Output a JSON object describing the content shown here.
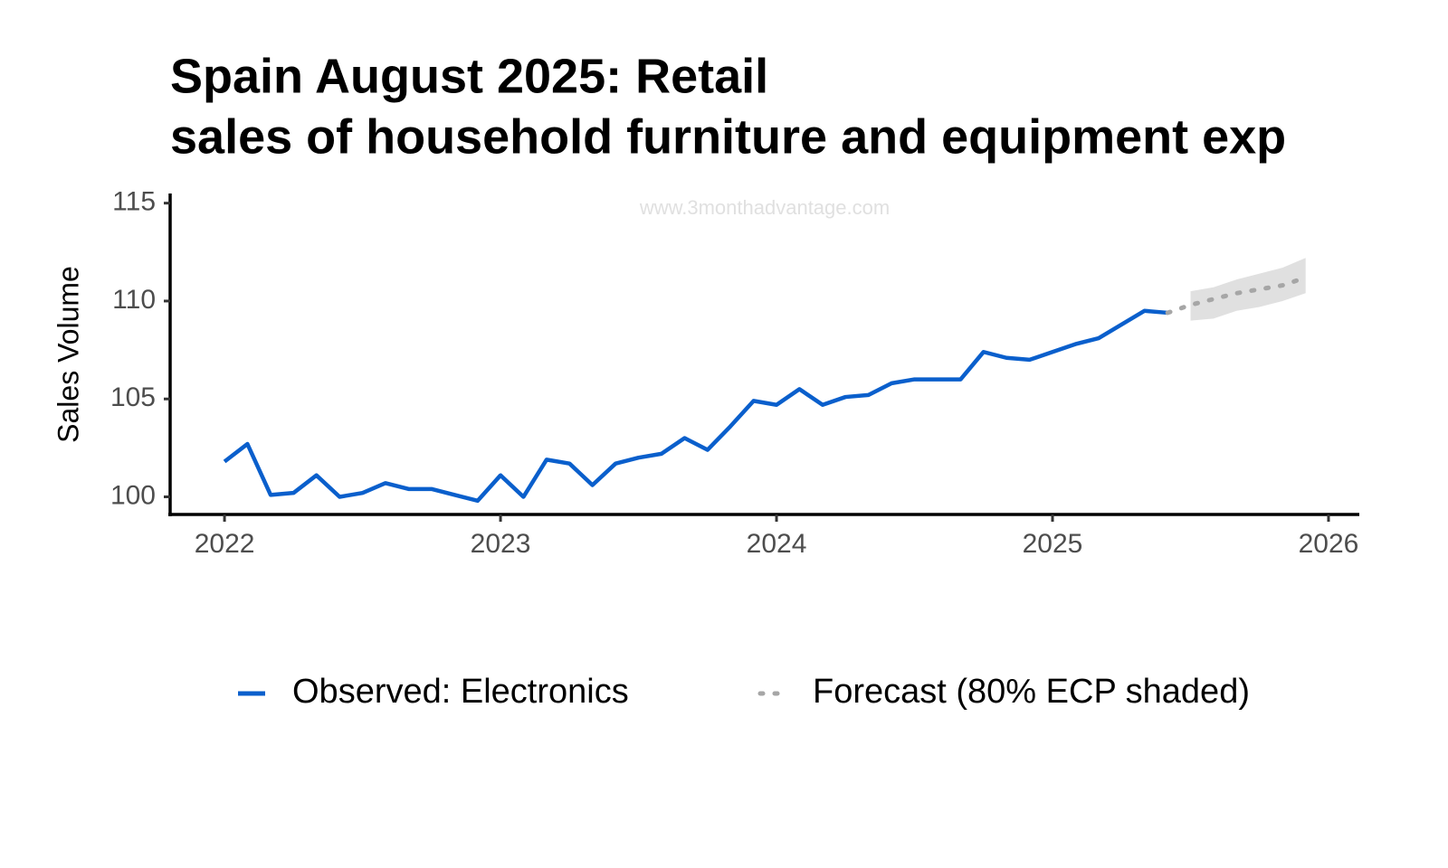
{
  "chart_data": {
    "type": "line",
    "title": [
      "Spain August 2025: Retail",
      "sales of household furniture and equipment exp"
    ],
    "watermark": "www.3monthadvantage.com",
    "ylabel": "Sales Volume",
    "xlim": [
      2021.803,
      2026.105
    ],
    "xticks": [
      2022,
      2023,
      2024,
      2025,
      2026
    ],
    "ylim": [
      99.1,
      115.4
    ],
    "yticks": [
      100,
      105,
      110,
      115
    ],
    "grid": false,
    "legend": "bottom",
    "series": [
      {
        "name": "Observed: Electronics",
        "color": "#0a5fcc",
        "line_style": "solid",
        "x": [
          2022,
          2022.083,
          2022.167,
          2022.25,
          2022.333,
          2022.417,
          2022.5,
          2022.583,
          2022.667,
          2022.75,
          2022.833,
          2022.917,
          2023,
          2023.083,
          2023.167,
          2023.25,
          2023.333,
          2023.417,
          2023.5,
          2023.583,
          2023.667,
          2023.75,
          2023.833,
          2023.917,
          2024,
          2024.083,
          2024.167,
          2024.25,
          2024.333,
          2024.417,
          2024.5,
          2024.583,
          2024.667,
          2024.75,
          2024.833,
          2024.917,
          2025,
          2025.083,
          2025.167,
          2025.25,
          2025.333,
          2025.417
        ],
        "values": [
          101.8,
          102.7,
          100.1,
          100.2,
          101.1,
          100.0,
          100.2,
          100.7,
          100.4,
          100.4,
          100.1,
          99.8,
          101.1,
          100.0,
          101.9,
          101.7,
          100.6,
          101.7,
          102.0,
          102.2,
          103.0,
          102.4,
          103.6,
          104.9,
          104.7,
          105.5,
          104.7,
          105.1,
          105.2,
          105.8,
          106.0,
          106.0,
          106.0,
          107.4,
          107.1,
          107.0,
          107.4,
          107.8,
          108.1,
          108.8,
          109.5,
          109.4
        ]
      },
      {
        "name": "Forecast (80% ECP shaded)",
        "color": "#a6a6a6",
        "line_style": "dotted",
        "band_color": "#e0e0e0",
        "x": [
          2025.417,
          2025.5,
          2025.583,
          2025.667,
          2025.75,
          2025.833,
          2025.917
        ],
        "values": [
          109.4,
          109.8,
          110.1,
          110.4,
          110.6,
          110.8,
          111.2
        ],
        "lower": [
          null,
          109.0,
          109.1,
          109.5,
          109.7,
          110.0,
          110.4
        ],
        "upper": [
          null,
          110.5,
          110.7,
          111.1,
          111.4,
          111.7,
          112.2
        ]
      }
    ]
  }
}
